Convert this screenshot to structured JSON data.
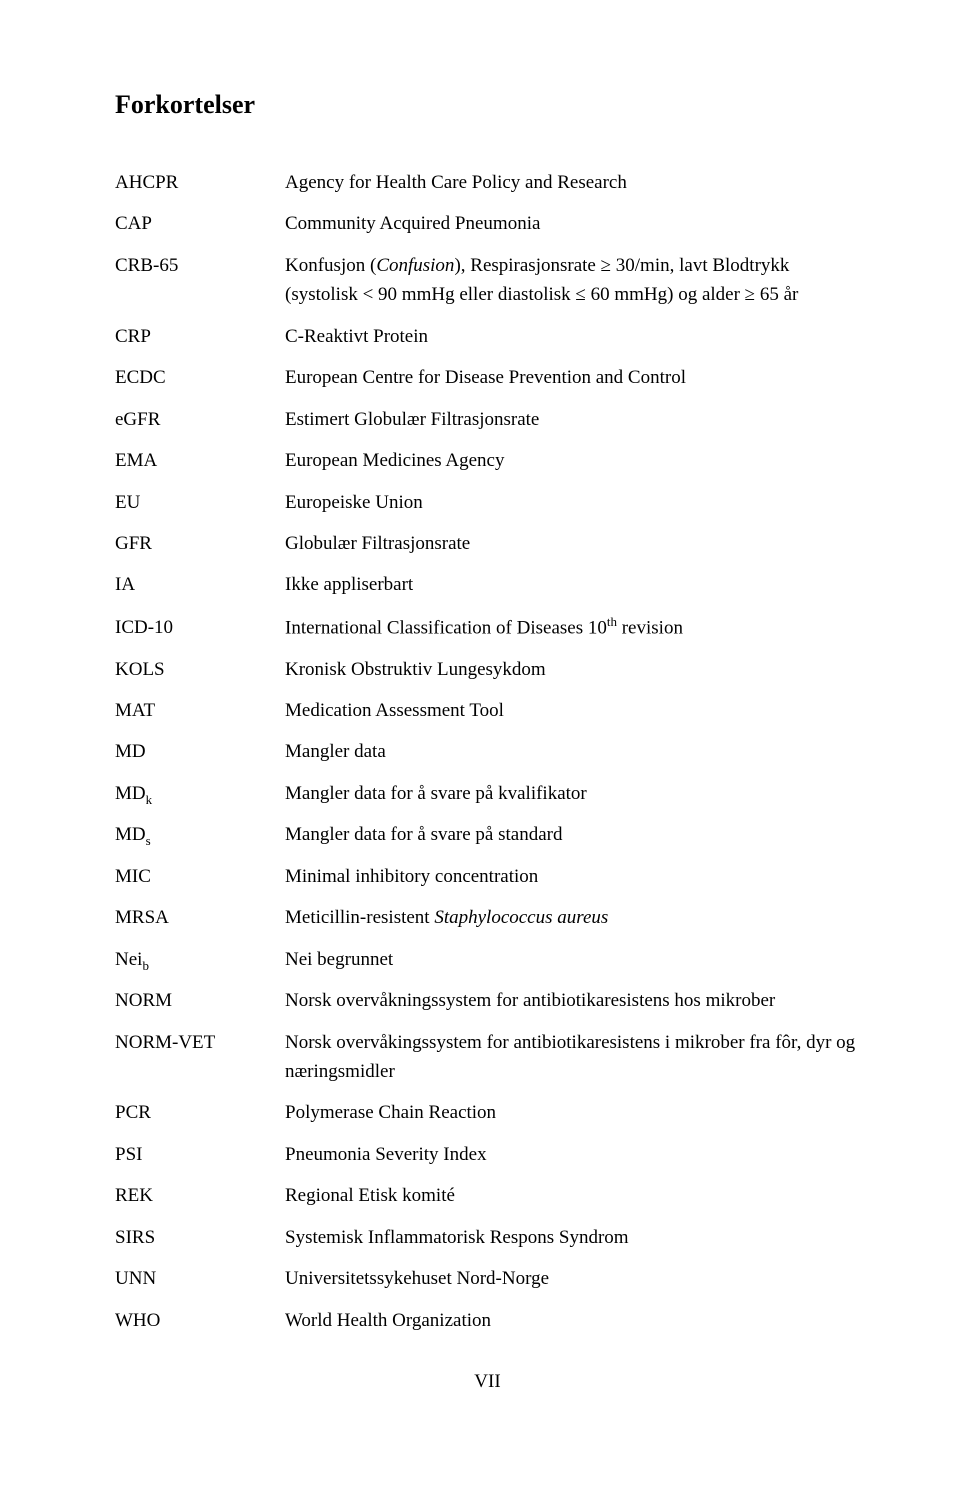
{
  "title": "Forkortelser",
  "page_number": "VII",
  "abbr": {
    "AHCPR": {
      "code": "AHCPR",
      "def": "Agency for Health Care Policy and Research"
    },
    "CAP": {
      "code": "CAP",
      "def": "Community Acquired Pneumonia"
    },
    "CRB65": {
      "code": "CRB-65",
      "def_pre": "Konfusjon (",
      "def_italic_1": "Confusion",
      "def_mid": "), Respirasjonsrate ≥ 30/min, lavt Blodtrykk (systolisk < 90 mmHg eller diastolisk ≤ 60 mmHg) og alder ≥ 65 år"
    },
    "CRP": {
      "code": "CRP",
      "def": "C-Reaktivt Protein"
    },
    "ECDC": {
      "code": "ECDC",
      "def": "European Centre for Disease Prevention and Control"
    },
    "eGFR": {
      "code": "eGFR",
      "def": "Estimert Globulær Filtrasjonsrate"
    },
    "EMA": {
      "code": "EMA",
      "def": "European Medicines Agency"
    },
    "EU": {
      "code": "EU",
      "def": "Europeiske Union"
    },
    "GFR": {
      "code": "GFR",
      "def": "Globulær Filtrasjonsrate"
    },
    "IA": {
      "code": "IA",
      "def": "Ikke appliserbart"
    },
    "ICD10": {
      "code": "ICD-10",
      "def_pre": "International Classification of Diseases 10",
      "def_sup": "th",
      "def_post": " revision"
    },
    "KOLS": {
      "code": "KOLS",
      "def": "Kronisk Obstruktiv Lungesykdom"
    },
    "MAT": {
      "code": "MAT",
      "def": "Medication Assessment Tool"
    },
    "MD": {
      "code": "MD",
      "def": "Mangler data"
    },
    "MDk": {
      "code_pre": "MD",
      "code_sub": "k",
      "def": "Mangler data for å svare på kvalifikator"
    },
    "MDs": {
      "code_pre": "MD",
      "code_sub": "s",
      "def": "Mangler data for å svare på standard"
    },
    "MIC": {
      "code": "MIC",
      "def": "Minimal inhibitory concentration"
    },
    "MRSA": {
      "code": "MRSA",
      "def_pre": "Meticillin-resistent ",
      "def_italic": "Staphylococcus aureus"
    },
    "Neib": {
      "code_pre": "Nei",
      "code_sub": "b",
      "def": "Nei begrunnet"
    },
    "NORM": {
      "code": "NORM",
      "def": "Norsk overvåkningssystem for antibiotikaresistens hos mikrober"
    },
    "NORMVET": {
      "code": "NORM-VET",
      "def": "Norsk overvåkingssystem for antibiotikaresistens i mikrober fra fôr, dyr og næringsmidler"
    },
    "PCR": {
      "code": "PCR",
      "def": "Polymerase Chain Reaction"
    },
    "PSI": {
      "code": "PSI",
      "def": "Pneumonia Severity Index"
    },
    "REK": {
      "code": "REK",
      "def": "Regional Etisk komité"
    },
    "SIRS": {
      "code": "SIRS",
      "def": "Systemisk Inflammatorisk Respons Syndrom"
    },
    "UNN": {
      "code": "UNN",
      "def": "Universitetssykehuset Nord-Norge"
    },
    "WHO": {
      "code": "WHO",
      "def": "World Health Organization"
    }
  }
}
